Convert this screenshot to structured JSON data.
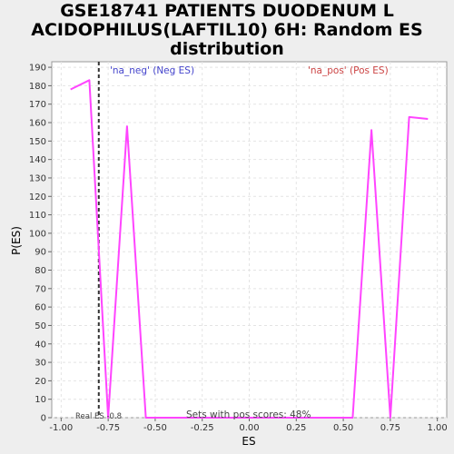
{
  "chart_data": {
    "type": "line",
    "title": [
      "GSE18741 PATIENTS DUODENUM L",
      "ACIDOPHILUS(LAFTIL10) 6H: Random ES",
      "distribution"
    ],
    "xlabel": "ES",
    "ylabel": "P(ES)",
    "xlim": [
      -1.05,
      1.05
    ],
    "ylim": [
      0,
      193
    ],
    "x_ticks": [
      "-1.00",
      "-0.75",
      "-0.50",
      "-0.25",
      "0.00",
      "0.25",
      "0.50",
      "0.75",
      "1.00"
    ],
    "x_tick_values": [
      -1.0,
      -0.75,
      -0.5,
      -0.25,
      0.0,
      0.25,
      0.5,
      0.75,
      1.0
    ],
    "y_ticks": [
      0,
      10,
      20,
      30,
      40,
      50,
      60,
      70,
      80,
      90,
      100,
      110,
      120,
      130,
      140,
      150,
      160,
      170,
      180,
      190
    ],
    "grid": true,
    "series": [
      {
        "color": "#ff44ff",
        "x": [
          -0.95,
          -0.85,
          -0.75,
          -0.65,
          -0.55,
          -0.45,
          -0.35,
          -0.25,
          -0.15,
          -0.05,
          0.05,
          0.15,
          0.25,
          0.35,
          0.45,
          0.55,
          0.65,
          0.75,
          0.85,
          0.95
        ],
        "y": [
          178,
          183,
          0,
          158,
          0,
          0,
          0,
          0,
          0,
          0,
          0,
          0,
          0,
          0,
          0,
          0,
          156,
          0,
          163,
          162
        ]
      }
    ],
    "annotations": {
      "neg_label": "'na_neg' (Neg ES)",
      "neg_color": "#4444cc",
      "pos_label": "'na_pos' (Pos ES)",
      "pos_color": "#cc4444",
      "real_es_label": "Real ES -0.8",
      "real_es_value": -0.8,
      "sets_label": "Sets with pos scores: 48%"
    }
  }
}
